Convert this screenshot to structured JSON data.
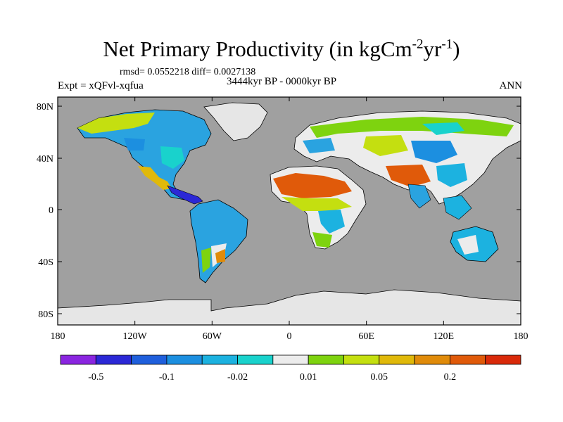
{
  "header": {
    "title_main": "Net Primary Productivity (in kgCm",
    "title_exp1": "-2",
    "title_mid": "yr",
    "title_exp2": "-1",
    "title_end": ")",
    "stats": "rmsd= 0.0552218 diff= 0.0027138",
    "experiment": "Expt = xQFvl-xqfua",
    "period": "3444kyr BP - 0000kyr BP",
    "season": "ANN"
  },
  "map": {
    "projection": "cylindrical equidistant",
    "lat_labels": [
      "80N",
      "40N",
      "0",
      "40S",
      "80S"
    ],
    "lat_values": [
      80,
      40,
      0,
      -40,
      -80
    ],
    "lon_labels": [
      "180",
      "120W",
      "60W",
      "0",
      "60E",
      "120E",
      "180"
    ],
    "lon_values": [
      -180,
      -120,
      -60,
      0,
      60,
      120,
      180
    ],
    "ocean_color": "#a0a0a0",
    "ice_color": "#e6e6e6"
  },
  "colorbar": {
    "colors": [
      "#8a25e0",
      "#2b28d6",
      "#1f5fdc",
      "#1c8fe0",
      "#1cb2e0",
      "#19d2cc",
      "#ececec",
      "#7ed30f",
      "#c4df10",
      "#e0b90a",
      "#e08b0a",
      "#e05a0a",
      "#d92a0a"
    ],
    "labels": [
      "-0.5",
      "-0.1",
      "-0.02",
      "0.01",
      "0.05",
      "0.2"
    ]
  }
}
